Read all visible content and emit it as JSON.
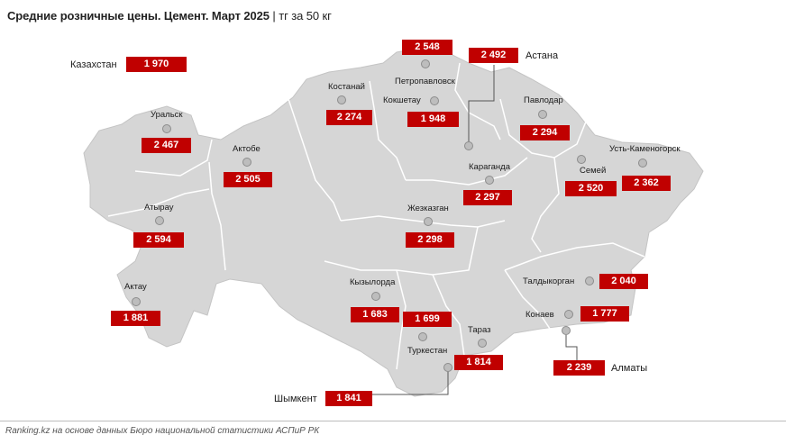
{
  "title": {
    "main": "Средние розничные цены. Цемент.  Март 2025",
    "separator": "|",
    "unit": "тг за 50 кг"
  },
  "national": {
    "name": "Казахстан",
    "value": "1 970"
  },
  "regions": [
    {
      "key": "uralsk",
      "name": "Уральск",
      "value": "2 467"
    },
    {
      "key": "aktobe",
      "name": "Актобе",
      "value": "2 505"
    },
    {
      "key": "atyrau",
      "name": "Атырау",
      "value": "2 594"
    },
    {
      "key": "aktau",
      "name": "Актау",
      "value": "1 881"
    },
    {
      "key": "kostanay",
      "name": "Костанай",
      "value": "2 274"
    },
    {
      "key": "petropavlovsk",
      "name": "Петропавловск",
      "value": "2 548"
    },
    {
      "key": "kokshetau",
      "name": "Кокшетау",
      "value": "1 948"
    },
    {
      "key": "astana",
      "name": "Астана",
      "value": "2 492"
    },
    {
      "key": "pavlodar",
      "name": "Павлодар",
      "value": "2 294"
    },
    {
      "key": "karaganda",
      "name": "Караганда",
      "value": "2 297"
    },
    {
      "key": "zhezkazgan",
      "name": "Жезказган",
      "value": "2 298"
    },
    {
      "key": "semey",
      "name": "Семей",
      "value": "2 520"
    },
    {
      "key": "ust_kamenogorsk",
      "name": "Усть-Каменогорск",
      "value": "2 362"
    },
    {
      "key": "kyzylorda",
      "name": "Кызылорда",
      "value": "1 683"
    },
    {
      "key": "turkestan",
      "name": "Туркестан",
      "value": "1 699"
    },
    {
      "key": "taraz",
      "name": "Тараз",
      "value": "1 814"
    },
    {
      "key": "shymkent",
      "name": "Шымкент",
      "value": "1 841"
    },
    {
      "key": "taldykorgan",
      "name": "Талдыкорган",
      "value": "2 040"
    },
    {
      "key": "konaev",
      "name": "Конаев",
      "value": "1 777"
    },
    {
      "key": "almaty",
      "name": "Алматы",
      "value": "2 239"
    }
  ],
  "source": "Ranking.kz на основе данных Бюро национальной статистики АСПиР РК",
  "colors": {
    "label_bg": "#c00000",
    "map_fill": "#d6d6d6",
    "border": "#ffffff",
    "marker": "#bdbdbd"
  }
}
